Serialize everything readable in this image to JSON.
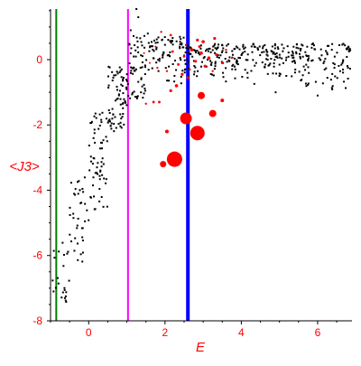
{
  "chart_data": {
    "type": "scatter",
    "title": "",
    "xlabel": "E",
    "ylabel": "<J3>",
    "xlim": [
      -1.0,
      6.9
    ],
    "ylim": [
      -8.0,
      1.55
    ],
    "grid": false,
    "label_color": "#ff0000",
    "x_ticks": [
      0,
      2,
      4,
      6
    ],
    "y_ticks": [
      0,
      -2,
      -4,
      -6,
      -8
    ],
    "x_tick_labels": [
      "0",
      "2",
      "4",
      "6"
    ],
    "y_tick_labels": [
      "0",
      "-2",
      "-4",
      "-6",
      "-8"
    ],
    "vertical_lines": [
      {
        "x": -0.85,
        "color": "#008000"
      },
      {
        "x": 1.03,
        "color": "#ff00ff"
      },
      {
        "x": 2.6,
        "color": "#0000ff"
      }
    ],
    "series": [
      {
        "color": "#000000",
        "marker": "dot",
        "bands": [
          {
            "x": [
              -1.0,
              -0.5
            ],
            "y": [
              -7.8,
              -5.6
            ]
          },
          {
            "x": [
              -0.5,
              0.0
            ],
            "y": [
              -6.2,
              -3.6
            ]
          },
          {
            "x": [
              0.0,
              0.5
            ],
            "y": [
              -4.6,
              -1.6
            ]
          },
          {
            "x": [
              0.5,
              1.0
            ],
            "y": [
              -2.2,
              -0.2
            ]
          },
          {
            "x": [
              1.0,
              1.5
            ],
            "y": [
              -1.2,
              0.8
            ]
          },
          {
            "x": [
              1.5,
              2.5
            ],
            "y": [
              -0.9,
              0.7
            ]
          },
          {
            "x": [
              2.5,
              4.0
            ],
            "y": [
              -0.7,
              0.5
            ]
          },
          {
            "x": [
              4.0,
              5.5
            ],
            "y": [
              -0.8,
              0.5
            ]
          },
          {
            "x": [
              5.5,
              6.9
            ],
            "y": [
              -1.0,
              0.5
            ]
          }
        ],
        "points_per_band": [
          22,
          38,
          60,
          70,
          60,
          75,
          120,
          110,
          100
        ],
        "outliers": [
          {
            "x": 1.1,
            "y": 0.9
          },
          {
            "x": 1.3,
            "y": 1.3
          },
          {
            "x": 1.25,
            "y": 1.55
          },
          {
            "x": 1.55,
            "y": 0.8
          },
          {
            "x": 4.9,
            "y": -1.0
          },
          {
            "x": 6.0,
            "y": -1.1
          },
          {
            "x": -0.6,
            "y": -7.25
          }
        ]
      },
      {
        "color": "#ff0000",
        "marker": "circle",
        "points": [
          {
            "x": 2.25,
            "y": -3.05,
            "size": 8.5
          },
          {
            "x": 2.85,
            "y": -2.25,
            "size": 8.0
          },
          {
            "x": 2.55,
            "y": -1.8,
            "size": 6.5
          },
          {
            "x": 3.25,
            "y": -1.65,
            "size": 4.0
          },
          {
            "x": 2.95,
            "y": -1.1,
            "size": 4.0
          },
          {
            "x": 1.95,
            "y": -3.2,
            "size": 3.5
          },
          {
            "x": 2.05,
            "y": -2.2,
            "size": 2.0
          },
          {
            "x": 3.5,
            "y": -1.25,
            "size": 2.0
          },
          {
            "x": 2.3,
            "y": -0.8,
            "size": 1.8
          },
          {
            "x": 2.15,
            "y": -0.95,
            "size": 1.6
          },
          {
            "x": 2.6,
            "y": -0.55,
            "size": 1.6
          },
          {
            "x": 2.45,
            "y": -0.45,
            "size": 1.6
          },
          {
            "x": 1.7,
            "y": -1.3,
            "size": 1.4
          },
          {
            "x": 1.85,
            "y": -1.3,
            "size": 1.4
          },
          {
            "x": 1.5,
            "y": -1.35,
            "size": 1.2
          },
          {
            "x": 3.0,
            "y": 0.55,
            "size": 1.8
          },
          {
            "x": 2.85,
            "y": 0.6,
            "size": 1.6
          },
          {
            "x": 3.3,
            "y": 0.65,
            "size": 1.6
          },
          {
            "x": 2.15,
            "y": 0.75,
            "size": 1.4
          },
          {
            "x": 1.9,
            "y": 0.85,
            "size": 1.2
          },
          {
            "x": 2.7,
            "y": 0.3,
            "size": 1.8
          },
          {
            "x": 2.95,
            "y": 0.2,
            "size": 1.8
          },
          {
            "x": 3.15,
            "y": 0.05,
            "size": 1.8
          },
          {
            "x": 2.8,
            "y": -0.05,
            "size": 1.6
          },
          {
            "x": 3.05,
            "y": -0.2,
            "size": 1.6
          },
          {
            "x": 3.35,
            "y": 0.15,
            "size": 1.6
          },
          {
            "x": 2.5,
            "y": 0.1,
            "size": 1.4
          },
          {
            "x": 2.35,
            "y": -0.15,
            "size": 1.4
          },
          {
            "x": 2.2,
            "y": 0.25,
            "size": 1.4
          },
          {
            "x": 3.5,
            "y": -0.1,
            "size": 1.4
          },
          {
            "x": 3.6,
            "y": 0.3,
            "size": 1.2
          },
          {
            "x": 2.05,
            "y": -0.35,
            "size": 1.2
          },
          {
            "x": 1.8,
            "y": -0.25,
            "size": 1.2
          },
          {
            "x": 1.6,
            "y": -0.1,
            "size": 1.0
          },
          {
            "x": 1.45,
            "y": 0.2,
            "size": 1.0
          },
          {
            "x": 3.25,
            "y": -0.35,
            "size": 1.2
          },
          {
            "x": 2.65,
            "y": -0.3,
            "size": 1.2
          },
          {
            "x": 2.9,
            "y": 0.4,
            "size": 1.4
          },
          {
            "x": 2.55,
            "y": 0.45,
            "size": 1.2
          },
          {
            "x": 1.75,
            "y": 0.4,
            "size": 1.0
          },
          {
            "x": 3.75,
            "y": 0.05,
            "size": 1.0
          }
        ]
      }
    ]
  }
}
